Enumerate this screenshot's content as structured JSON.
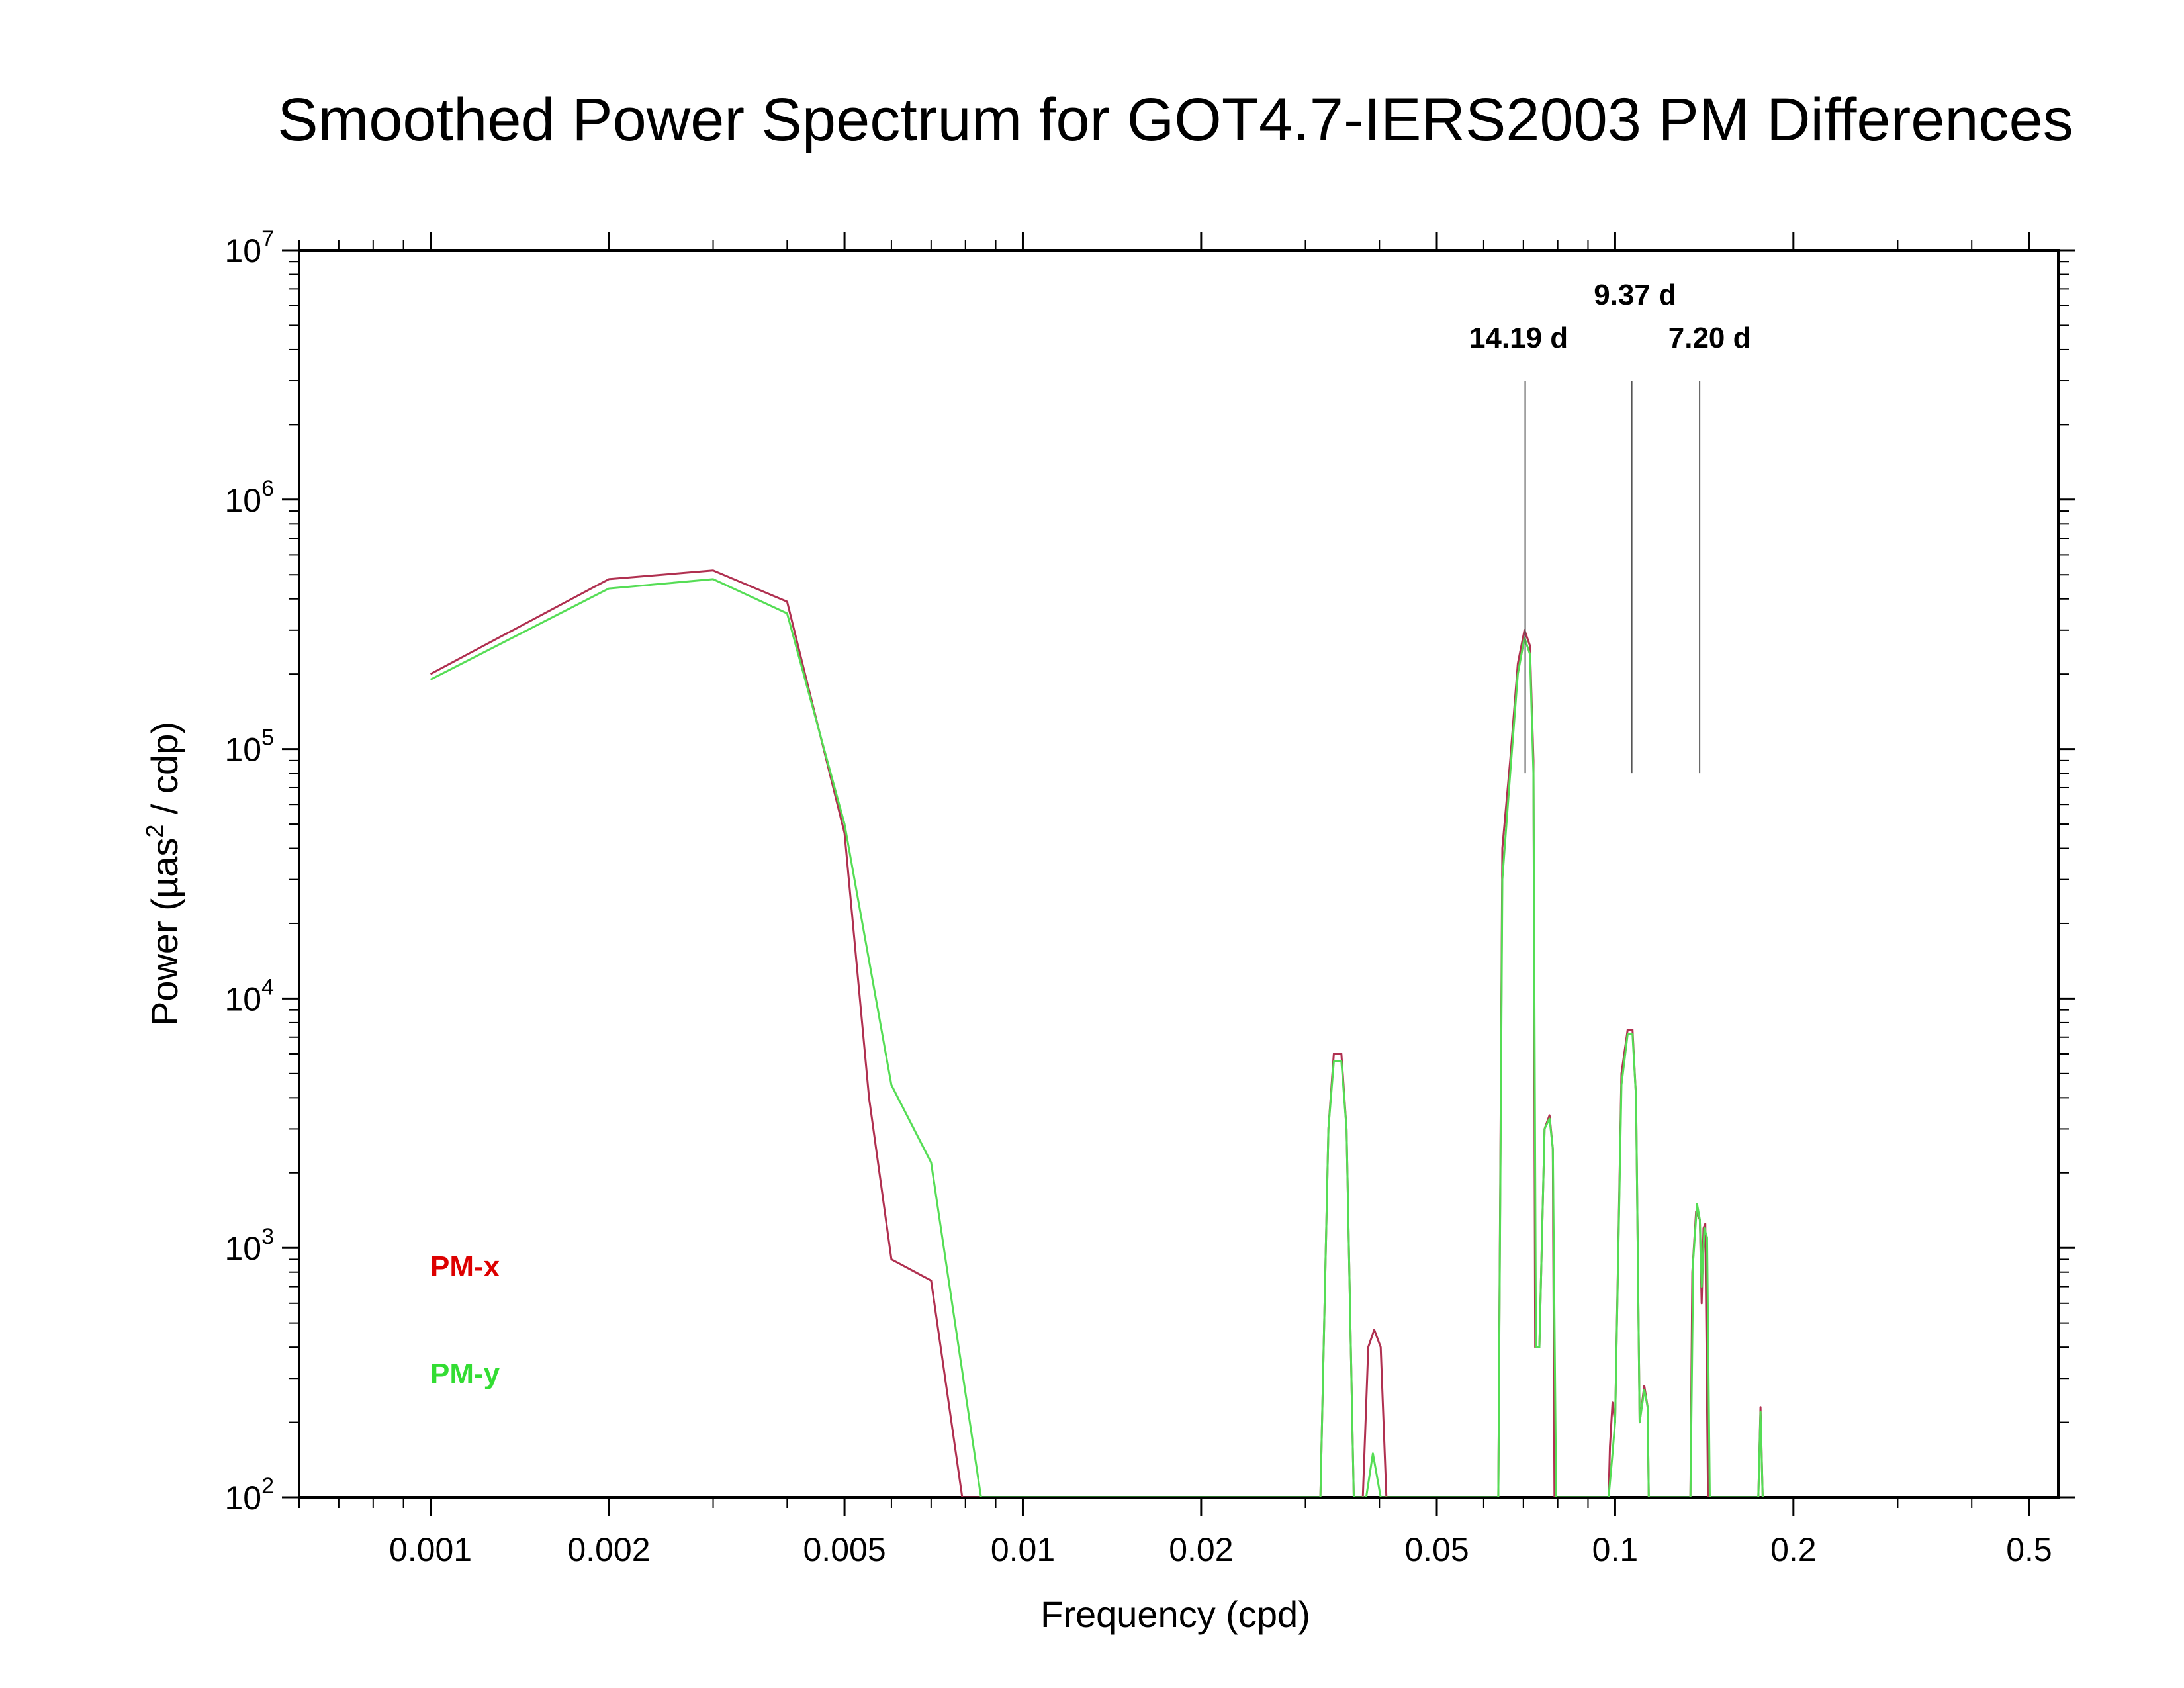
{
  "chart_data": {
    "type": "line",
    "title": "Smoothed Power Spectrum for GOT4.7-IERS2003 PM Differences",
    "xlabel": "Frequency (cpd)",
    "ylabel_prefix": "Power (µas",
    "ylabel_sup": "2",
    "ylabel_suffix": " / cdp)",
    "x_scale": "log",
    "y_scale": "log",
    "xlim": [
      0.0006,
      0.56
    ],
    "ylim": [
      100,
      10000000
    ],
    "grid": false,
    "x_ticks": [
      {
        "value": 0.001,
        "label": "0.001"
      },
      {
        "value": 0.002,
        "label": "0.002"
      },
      {
        "value": 0.005,
        "label": "0.005"
      },
      {
        "value": 0.01,
        "label": "0.01"
      },
      {
        "value": 0.02,
        "label": "0.02"
      },
      {
        "value": 0.05,
        "label": "0.05"
      },
      {
        "value": 0.1,
        "label": "0.1"
      },
      {
        "value": 0.2,
        "label": "0.2"
      },
      {
        "value": 0.5,
        "label": "0.5"
      }
    ],
    "y_ticks": [
      {
        "value": 100,
        "base": "10",
        "exp": "2"
      },
      {
        "value": 1000,
        "base": "10",
        "exp": "3"
      },
      {
        "value": 10000,
        "base": "10",
        "exp": "4"
      },
      {
        "value": 100000,
        "base": "10",
        "exp": "5"
      },
      {
        "value": 1000000,
        "base": "10",
        "exp": "6"
      },
      {
        "value": 10000000,
        "base": "10",
        "exp": "7"
      }
    ],
    "annotations": [
      {
        "period_label": "14.19 d",
        "frequency": 0.0705,
        "line_top": 3000000,
        "line_bottom": 80000
      },
      {
        "period_label": "9.37 d",
        "frequency": 0.1067,
        "line_top": 3000000,
        "line_bottom": 80000
      },
      {
        "period_label": "7.20 d",
        "frequency": 0.1389,
        "line_top": 3000000,
        "line_bottom": 80000
      }
    ],
    "legend_position": "bottom-left",
    "series": [
      {
        "name": "PM-x",
        "color": "#b03050",
        "legend_color": "#dd0000",
        "points": [
          [
            0.001,
            200000
          ],
          [
            0.002,
            480000
          ],
          [
            0.003,
            520000
          ],
          [
            0.004,
            390000
          ],
          [
            0.005,
            46000
          ],
          [
            0.0055,
            4000
          ],
          [
            0.006,
            900
          ],
          [
            0.007,
            740
          ],
          [
            0.0079,
            100
          ],
          [
            0.0318,
            100
          ],
          [
            0.0328,
            3000
          ],
          [
            0.0335,
            6000
          ],
          [
            0.0345,
            6000
          ],
          [
            0.0352,
            3000
          ],
          [
            0.0362,
            100
          ],
          [
            0.0375,
            100
          ],
          [
            0.0383,
            400
          ],
          [
            0.0392,
            470
          ],
          [
            0.0402,
            400
          ],
          [
            0.0411,
            100
          ],
          [
            0.0635,
            100
          ],
          [
            0.0645,
            40000
          ],
          [
            0.0665,
            90000
          ],
          [
            0.0685,
            220000
          ],
          [
            0.0703,
            300000
          ],
          [
            0.0718,
            260000
          ],
          [
            0.0728,
            90000
          ],
          [
            0.0733,
            400
          ],
          [
            0.0745,
            400
          ],
          [
            0.076,
            3000
          ],
          [
            0.0775,
            3400
          ],
          [
            0.0785,
            2500
          ],
          [
            0.079,
            100
          ],
          [
            0.0975,
            100
          ],
          [
            0.098,
            160
          ],
          [
            0.099,
            240
          ],
          [
            0.1,
            200
          ],
          [
            0.1025,
            5000
          ],
          [
            0.105,
            7500
          ],
          [
            0.107,
            7500
          ],
          [
            0.1085,
            4000
          ],
          [
            0.11,
            200
          ],
          [
            0.112,
            280
          ],
          [
            0.1135,
            230
          ],
          [
            0.114,
            100
          ],
          [
            0.134,
            100
          ],
          [
            0.135,
            800
          ],
          [
            0.137,
            1400
          ],
          [
            0.139,
            1300
          ],
          [
            0.14,
            600
          ],
          [
            0.141,
            1200
          ],
          [
            0.142,
            1250
          ],
          [
            0.1435,
            100
          ],
          [
            0.1745,
            100
          ],
          [
            0.176,
            230
          ],
          [
            0.1775,
            100
          ]
        ]
      },
      {
        "name": "PM-y",
        "color": "#55dd55",
        "legend_color": "#33dd33",
        "points": [
          [
            0.001,
            190000
          ],
          [
            0.002,
            440000
          ],
          [
            0.003,
            480000
          ],
          [
            0.004,
            350000
          ],
          [
            0.005,
            50000
          ],
          [
            0.006,
            4500
          ],
          [
            0.007,
            2200
          ],
          [
            0.0085,
            100
          ],
          [
            0.0318,
            100
          ],
          [
            0.0328,
            3000
          ],
          [
            0.0335,
            5600
          ],
          [
            0.0345,
            5600
          ],
          [
            0.0352,
            3000
          ],
          [
            0.0362,
            100
          ],
          [
            0.038,
            100
          ],
          [
            0.039,
            150
          ],
          [
            0.0402,
            100
          ],
          [
            0.0635,
            100
          ],
          [
            0.0645,
            30000
          ],
          [
            0.0665,
            80000
          ],
          [
            0.0685,
            200000
          ],
          [
            0.0703,
            280000
          ],
          [
            0.0718,
            240000
          ],
          [
            0.0728,
            80000
          ],
          [
            0.0735,
            400
          ],
          [
            0.0745,
            400
          ],
          [
            0.076,
            3000
          ],
          [
            0.0775,
            3300
          ],
          [
            0.0785,
            2500
          ],
          [
            0.0795,
            100
          ],
          [
            0.0975,
            100
          ],
          [
            0.099,
            150
          ],
          [
            0.1,
            200
          ],
          [
            0.1025,
            4500
          ],
          [
            0.105,
            7200
          ],
          [
            0.107,
            7200
          ],
          [
            0.1085,
            4000
          ],
          [
            0.11,
            200
          ],
          [
            0.112,
            270
          ],
          [
            0.1135,
            230
          ],
          [
            0.114,
            100
          ],
          [
            0.134,
            100
          ],
          [
            0.1355,
            900
          ],
          [
            0.1375,
            1500
          ],
          [
            0.139,
            1300
          ],
          [
            0.14,
            700
          ],
          [
            0.1415,
            1200
          ],
          [
            0.143,
            1100
          ],
          [
            0.1445,
            100
          ],
          [
            0.1745,
            100
          ],
          [
            0.176,
            220
          ],
          [
            0.1775,
            100
          ]
        ]
      }
    ]
  }
}
